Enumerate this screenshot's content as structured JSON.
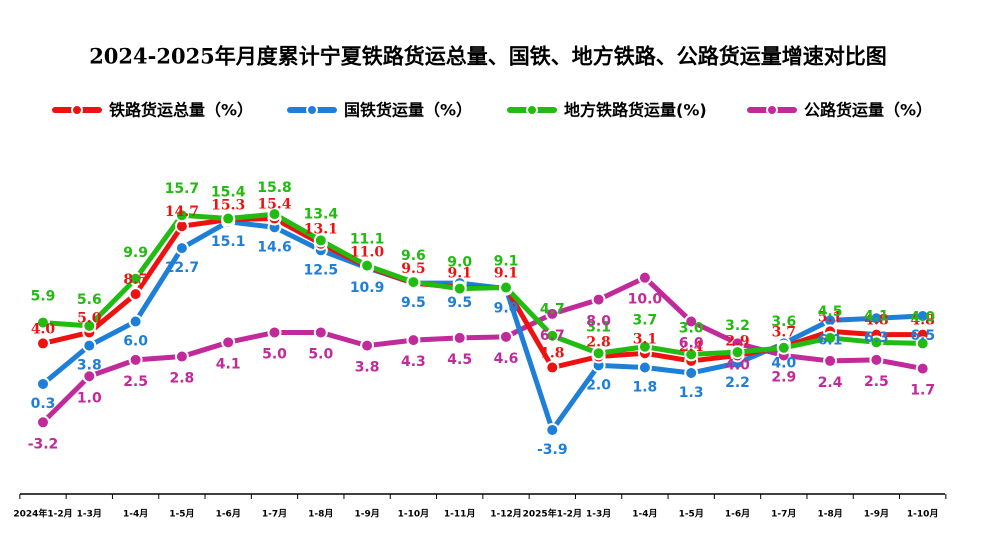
{
  "chart_data": {
    "type": "line",
    "title": "2024-2025年月度累计宁夏铁路货运总量、国铁、地方铁路、公路货运量增速对比图",
    "categories": [
      "2024年1-2月",
      "1-3月",
      "1-4月",
      "1-5月",
      "1-6月",
      "1-7月",
      "1-8月",
      "1-9月",
      "1-10月",
      "1-11月",
      "1-12月",
      "2025年1-2月",
      "1-3月",
      "1-4月",
      "1-5月",
      "1-6月",
      "1-7月",
      "1-8月",
      "1-9月",
      "1-10月"
    ],
    "ylim": [
      -5,
      17
    ],
    "series": [
      {
        "name": "铁路货运总量（%）",
        "color": "#ee1111",
        "values": [
          4.0,
          5.0,
          8.5,
          14.7,
          15.3,
          15.4,
          13.1,
          11.0,
          9.5,
          9.1,
          9.1,
          1.8,
          2.8,
          3.1,
          2.4,
          2.9,
          3.7,
          5.1,
          4.8,
          4.8
        ],
        "value_labels": [
          "4.0",
          "5.0",
          "8.5",
          "14.7",
          "15.3",
          "15.4",
          "13.1",
          "11.0",
          "9.5",
          "9.1",
          "9.1",
          "1.8",
          "2.8",
          "3.1",
          "2.4",
          "2.9",
          "3.7",
          "5.1",
          "4.8",
          "4.8"
        ]
      },
      {
        "name": "国铁货运量（%）",
        "color": "#1e7fd8",
        "values": [
          0.3,
          3.8,
          6.0,
          12.7,
          15.1,
          14.6,
          12.5,
          10.9,
          9.5,
          9.5,
          9.0,
          -3.9,
          2.0,
          1.8,
          1.3,
          2.2,
          4.0,
          6.1,
          6.3,
          6.5
        ],
        "value_labels": [
          "0.3",
          "3.8",
          "6.0",
          "12.7",
          "15.1",
          "14.6",
          "12.5",
          "10.9",
          "9.5",
          "9.5",
          "9.0",
          "-3.9",
          "2.0",
          "1.8",
          "1.3",
          "2.2",
          "4.0",
          "6.1",
          "6.3",
          "6.5"
        ]
      },
      {
        "name": "地方铁路货运量(%)",
        "color": "#22bb11",
        "values": [
          5.9,
          5.6,
          9.9,
          15.7,
          15.4,
          15.8,
          13.4,
          11.1,
          9.6,
          9.0,
          9.1,
          4.7,
          3.1,
          3.7,
          3.0,
          3.2,
          3.6,
          4.5,
          4.1,
          4.0
        ],
        "value_labels": [
          "5.9",
          "5.6",
          "9.9",
          "15.7",
          "15.4",
          "15.8",
          "13.4",
          "11.1",
          "9.6",
          "9.0",
          "9.1",
          "4.7",
          "3.1",
          "3.7",
          "3.0",
          "3.2",
          "3.6",
          "4.5",
          "4.1",
          "4.0"
        ]
      },
      {
        "name": "公路货运量（%）",
        "color": "#c02a9a",
        "values": [
          -3.2,
          1.0,
          2.5,
          2.8,
          4.1,
          5.0,
          5.0,
          3.8,
          4.3,
          4.5,
          4.6,
          6.7,
          8.0,
          10.0,
          6.0,
          4.0,
          2.9,
          2.4,
          2.5,
          1.7
        ],
        "value_labels": [
          "-3.2",
          "1.0",
          "2.5",
          "2.8",
          "4.1",
          "5.0",
          "5.0",
          "3.8",
          "4.3",
          "4.5",
          "4.6",
          "6.7",
          "8.0",
          "10.0",
          "6.0",
          "4.0",
          "2.9",
          "2.4",
          "2.5",
          "1.7"
        ]
      }
    ]
  }
}
